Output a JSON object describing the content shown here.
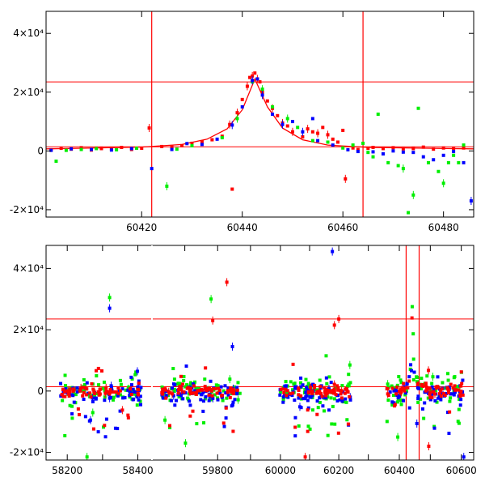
{
  "colors": {
    "red": "#ff0000",
    "green": "#00ee00",
    "blue": "#0000ff",
    "axis": "#000000"
  },
  "chart_data": [
    {
      "type": "scatter",
      "title": "",
      "xlabel": "",
      "ylabel": "",
      "xlim": [
        60401,
        60486
      ],
      "ylim": [
        -22500,
        47500
      ],
      "x_ticks": [
        {
          "value": 60420,
          "label": "60420"
        },
        {
          "value": 60440,
          "label": "60440"
        },
        {
          "value": 60460,
          "label": "60460"
        },
        {
          "value": 60480,
          "label": "60480"
        }
      ],
      "y_ticks": [
        {
          "value": -20000,
          "label": "-2×10⁴"
        },
        {
          "value": 0,
          "label": "0"
        },
        {
          "value": 20000,
          "label": "2×10⁴"
        },
        {
          "value": 40000,
          "label": "4×10⁴"
        }
      ],
      "reference_lines": {
        "vertical": [
          60422,
          60464
        ],
        "horizontal": [
          23500,
          1400
        ]
      },
      "model_curve": {
        "color": "red",
        "x": [
          60401,
          60420,
          60428,
          60433,
          60437,
          60440,
          60442.5,
          60445,
          60448,
          60452,
          60457,
          60465,
          60486
        ],
        "y": [
          700,
          1300,
          2200,
          4000,
          7500,
          14000,
          24500,
          15000,
          7800,
          3800,
          2000,
          1200,
          700
        ]
      },
      "series": [
        {
          "color": "red",
          "points": [
            [
              60402,
              400
            ],
            [
              60404,
              900
            ],
            [
              60406,
              600
            ],
            [
              60408,
              1100
            ],
            [
              60410,
              300
            ],
            [
              60412,
              800
            ],
            [
              60414,
              700
            ],
            [
              60416,
              1200
            ],
            [
              60418,
              500
            ],
            [
              60420,
              900
            ],
            [
              60421.5,
              7800
            ],
            [
              60424,
              1500
            ],
            [
              60426,
              1300
            ],
            [
              60428,
              1800
            ],
            [
              60430,
              2600
            ],
            [
              60432,
              3000
            ],
            [
              60434,
              3800
            ],
            [
              60436,
              5000
            ],
            [
              60437.5,
              9000
            ],
            [
              60438,
              -13000
            ],
            [
              60439,
              13000
            ],
            [
              60440,
              17500
            ],
            [
              60441,
              22000
            ],
            [
              60441.5,
              25000
            ],
            [
              60442,
              25500
            ],
            [
              60442.5,
              26500
            ],
            [
              60443,
              24500
            ],
            [
              60443.5,
              23500
            ],
            [
              60444,
              20000
            ],
            [
              60445,
              17000
            ],
            [
              60446,
              14500
            ],
            [
              60447,
              12000
            ],
            [
              60448,
              9500
            ],
            [
              60449,
              8500
            ],
            [
              60450,
              6500
            ],
            [
              60452,
              4800
            ],
            [
              60453,
              7500
            ],
            [
              60454,
              6500
            ],
            [
              60455,
              6000
            ],
            [
              60456,
              8000
            ],
            [
              60457,
              5500
            ],
            [
              60458,
              4000
            ],
            [
              60459,
              3000
            ],
            [
              60460,
              7000
            ],
            [
              60460.5,
              -9500
            ],
            [
              60462,
              1000
            ],
            [
              60463,
              500
            ],
            [
              60465,
              900
            ],
            [
              60466,
              1200
            ],
            [
              60468,
              800
            ],
            [
              60470,
              1100
            ],
            [
              60472,
              700
            ],
            [
              60474,
              800
            ],
            [
              60476,
              1300
            ],
            [
              60478,
              600
            ],
            [
              60480,
              1000
            ],
            [
              60482,
              900
            ],
            [
              60484,
              1000
            ]
          ]
        },
        {
          "color": "green",
          "points": [
            [
              60403,
              -3500
            ],
            [
              60405,
              200
            ],
            [
              60408,
              500
            ],
            [
              60411,
              800
            ],
            [
              60415,
              400
            ],
            [
              60419,
              900
            ],
            [
              60425,
              -12000
            ],
            [
              60427,
              600
            ],
            [
              60430,
              1800
            ],
            [
              60436,
              4500
            ],
            [
              60439,
              11000
            ],
            [
              60442,
              23500
            ],
            [
              60444,
              21000
            ],
            [
              60446,
              15000
            ],
            [
              60449,
              11000
            ],
            [
              60451,
              8000
            ],
            [
              60454,
              3500
            ],
            [
              60457,
              3000
            ],
            [
              60460,
              1000
            ],
            [
              60462,
              2000
            ],
            [
              60464,
              2600
            ],
            [
              60465,
              -500
            ],
            [
              60466,
              -2000
            ],
            [
              60467,
              12500
            ],
            [
              60469,
              -4000
            ],
            [
              60471,
              -5000
            ],
            [
              60472,
              -6000
            ],
            [
              60473,
              -21000
            ],
            [
              60474,
              -15000
            ],
            [
              60475,
              14500
            ],
            [
              60477,
              -4000
            ],
            [
              60479,
              -7000
            ],
            [
              60480,
              -11000
            ],
            [
              60481,
              -4000
            ],
            [
              60482,
              -1500
            ],
            [
              60483,
              -4000
            ],
            [
              60484,
              2000
            ]
          ]
        },
        {
          "color": "blue",
          "points": [
            [
              60402,
              200
            ],
            [
              60406,
              700
            ],
            [
              60410,
              500
            ],
            [
              60414,
              300
            ],
            [
              60418,
              800
            ],
            [
              60422,
              -6000
            ],
            [
              60426,
              500
            ],
            [
              60429,
              2500
            ],
            [
              60432,
              2200
            ],
            [
              60435,
              4000
            ],
            [
              60438,
              8800
            ],
            [
              60440,
              15000
            ],
            [
              60442,
              24000
            ],
            [
              60443,
              24500
            ],
            [
              60444,
              19000
            ],
            [
              60446,
              12500
            ],
            [
              60448,
              9000
            ],
            [
              60450,
              10000
            ],
            [
              60452,
              6500
            ],
            [
              60454,
              11000
            ],
            [
              60455,
              3500
            ],
            [
              60458,
              2000
            ],
            [
              60461,
              400
            ],
            [
              60463,
              -200
            ],
            [
              60466,
              -300
            ],
            [
              60468,
              -1000
            ],
            [
              60470,
              0
            ],
            [
              60472,
              -400
            ],
            [
              60474,
              -500
            ],
            [
              60476,
              -2000
            ],
            [
              60478,
              -3000
            ],
            [
              60480,
              -1500
            ],
            [
              60482,
              -200
            ],
            [
              60484,
              -4000
            ],
            [
              60485.5,
              -17000
            ]
          ]
        }
      ]
    },
    {
      "type": "scatter",
      "title": "",
      "xlabel": "",
      "ylabel": "",
      "ylim": [
        -22500,
        47500
      ],
      "x_segments": [
        {
          "xlim": [
            58140,
            58440
          ]
        },
        {
          "xlim": [
            59600,
            59920
          ]
        },
        {
          "xlim": [
            59920,
            60280
          ]
        },
        {
          "xlim": [
            60280,
            60640
          ]
        }
      ],
      "x_ticks": [
        {
          "value": 58200,
          "label": "58200"
        },
        {
          "value": 58300,
          "label": ""
        },
        {
          "value": 58400,
          "label": "58400"
        },
        {
          "value": 59700,
          "label": ""
        },
        {
          "value": 59800,
          "label": "59800"
        },
        {
          "value": 59900,
          "label": ""
        },
        {
          "value": 60000,
          "label": "60000"
        },
        {
          "value": 60100,
          "label": ""
        },
        {
          "value": 60200,
          "label": "60200"
        },
        {
          "value": 60300,
          "label": ""
        },
        {
          "value": 60400,
          "label": "60400"
        },
        {
          "value": 60500,
          "label": ""
        },
        {
          "value": 60600,
          "label": "60600"
        }
      ],
      "y_ticks": [
        {
          "value": -20000,
          "label": "-2×10⁴"
        },
        {
          "value": 0,
          "label": "0"
        },
        {
          "value": 20000,
          "label": "2×10⁴"
        },
        {
          "value": 40000,
          "label": "4×10⁴"
        }
      ],
      "reference_lines": {
        "vertical": [
          60422,
          60464
        ],
        "horizontal": [
          23500,
          1400
        ]
      },
      "observing_seasons": [
        {
          "start": 58180,
          "end": 58410
        },
        {
          "start": 59630,
          "end": 59870
        },
        {
          "start": 59995,
          "end": 60240
        },
        {
          "start": 60360,
          "end": 60610
        }
      ],
      "peak": {
        "center": 60442,
        "height": 26000,
        "halfwidth": 8
      },
      "notable_points": [
        {
          "color": "green",
          "x": 58320,
          "y": 30500
        },
        {
          "color": "blue",
          "x": 58320,
          "y": 27000
        },
        {
          "color": "red",
          "x": 59828,
          "y": 35500
        },
        {
          "color": "green",
          "x": 59780,
          "y": 30000
        },
        {
          "color": "red",
          "x": 59785,
          "y": 23000
        },
        {
          "color": "blue",
          "x": 59845,
          "y": 14500
        },
        {
          "color": "blue",
          "x": 60178,
          "y": 45500
        },
        {
          "color": "red",
          "x": 60200,
          "y": 23500
        },
        {
          "color": "red",
          "x": 60185,
          "y": 21500
        },
        {
          "color": "green",
          "x": 60238,
          "y": 8500
        },
        {
          "color": "green",
          "x": 58256,
          "y": -21500
        },
        {
          "color": "green",
          "x": 59702,
          "y": -17000
        },
        {
          "color": "red",
          "x": 60085,
          "y": -21500
        },
        {
          "color": "blue",
          "x": 60608,
          "y": -21500
        },
        {
          "color": "red",
          "x": 60495,
          "y": -18000
        },
        {
          "color": "green",
          "x": 60395,
          "y": -15000
        }
      ]
    }
  ]
}
